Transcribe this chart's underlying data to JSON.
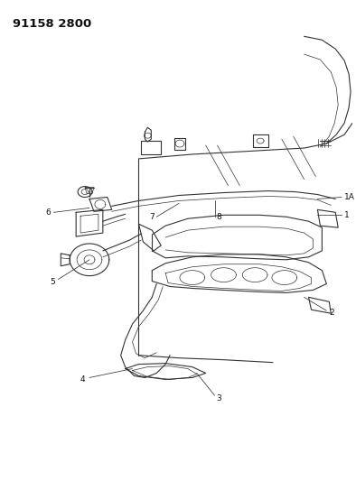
{
  "title_code": "91158 2800",
  "background_color": "#ffffff",
  "line_color": "#333333",
  "text_color": "#111111",
  "fig_width": 3.94,
  "fig_height": 5.33,
  "dpi": 100,
  "label_fontsize": 6.5,
  "code_fontsize": 9.5
}
